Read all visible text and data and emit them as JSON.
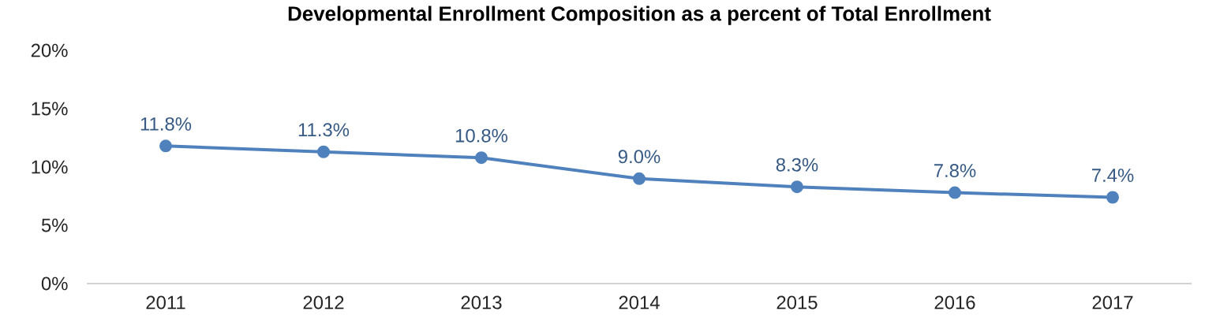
{
  "chart_data": {
    "type": "line",
    "title": "Developmental Enrollment Composition as a percent of Total Enrollment",
    "categories": [
      "2011",
      "2012",
      "2013",
      "2014",
      "2015",
      "2016",
      "2017"
    ],
    "series": [
      {
        "color": "#4f81bd",
        "values": [
          11.8,
          11.3,
          10.8,
          9.0,
          8.3,
          7.8,
          7.4
        ],
        "value_labels": [
          "11.8%",
          "11.3%",
          "10.8%",
          "9.0%",
          "8.3%",
          "7.8%",
          "7.4%"
        ]
      }
    ],
    "ylim": [
      0,
      20
    ],
    "yticks": [
      {
        "value": 0,
        "label": "0%"
      },
      {
        "value": 5,
        "label": "5%"
      },
      {
        "value": 10,
        "label": "10%"
      },
      {
        "value": 15,
        "label": "15%"
      },
      {
        "value": 20,
        "label": "20%"
      }
    ],
    "marker": "circle",
    "grid": false
  }
}
